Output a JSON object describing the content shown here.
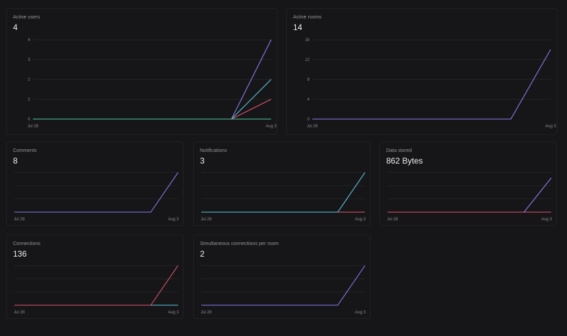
{
  "colors": {
    "purple": "#8b7cf0",
    "cyan": "#5ec8e5",
    "red": "#e5546e",
    "green": "#4fc9a1",
    "grid": "#2a2a2e",
    "axis_text": "#8a8a90"
  },
  "cards": [
    {
      "id": "active-users",
      "title": "Active users",
      "value": "4",
      "chart_data": {
        "type": "line",
        "x_labels": [
          "Jul 28",
          "Aug 3"
        ],
        "y_ticks": [
          0,
          1,
          2,
          3,
          4
        ],
        "ylim": [
          0,
          4
        ],
        "show_y_ticks": true,
        "series": [
          {
            "color": "purple",
            "values": [
              0,
              0,
              0,
              0,
              0,
              0,
              4
            ]
          },
          {
            "color": "cyan",
            "values": [
              0,
              0,
              0,
              0,
              0,
              0,
              2
            ]
          },
          {
            "color": "red",
            "values": [
              0,
              0,
              0,
              0,
              0,
              0,
              1
            ]
          },
          {
            "color": "green",
            "values": [
              0,
              0,
              0,
              0,
              0,
              0,
              0
            ]
          }
        ]
      }
    },
    {
      "id": "active-rooms",
      "title": "Active rooms",
      "value": "14",
      "chart_data": {
        "type": "line",
        "x_labels": [
          "Jul 28",
          "Aug 3"
        ],
        "y_ticks": [
          0,
          4,
          8,
          12,
          16
        ],
        "ylim": [
          0,
          16
        ],
        "show_y_ticks": true,
        "series": [
          {
            "color": "purple",
            "values": [
              0,
              0,
              0,
              0,
              0,
              0,
              14
            ]
          }
        ]
      }
    },
    {
      "id": "comments",
      "title": "Comments",
      "value": "8",
      "chart_data": {
        "type": "line",
        "x_labels": [
          "Jul 28",
          "Aug 3"
        ],
        "ylim": [
          0,
          8
        ],
        "grid_lines": 3,
        "show_y_ticks": false,
        "series": [
          {
            "color": "purple",
            "values": [
              0,
              0,
              0,
              0,
              0,
              0,
              8
            ]
          }
        ]
      }
    },
    {
      "id": "notifications",
      "title": "Notifications",
      "value": "3",
      "chart_data": {
        "type": "line",
        "x_labels": [
          "Jul 28",
          "Aug 3"
        ],
        "ylim": [
          0,
          3
        ],
        "grid_lines": 3,
        "show_y_ticks": false,
        "series": [
          {
            "color": "red",
            "values": [
              0,
              0,
              0,
              0,
              0,
              0,
              0
            ]
          },
          {
            "color": "cyan",
            "values": [
              0,
              0,
              0,
              0,
              0,
              0,
              3
            ]
          }
        ]
      }
    },
    {
      "id": "data-stored",
      "title": "Data stored",
      "value": "862 Bytes",
      "chart_data": {
        "type": "line",
        "x_labels": [
          "Jul 28",
          "Aug 3"
        ],
        "ylim": [
          0,
          1000
        ],
        "grid_lines": 3,
        "show_y_ticks": false,
        "series": [
          {
            "color": "purple",
            "values": [
              0,
              0,
              0,
              0,
              0,
              0,
              862
            ]
          },
          {
            "color": "red",
            "values": [
              0,
              0,
              0,
              0,
              0,
              0,
              0
            ]
          }
        ]
      }
    },
    {
      "id": "connections",
      "title": "Connections",
      "value": "136",
      "chart_data": {
        "type": "line",
        "x_labels": [
          "Jul 28",
          "Aug 3"
        ],
        "ylim": [
          0,
          136
        ],
        "grid_lines": 3,
        "show_y_ticks": false,
        "series": [
          {
            "color": "cyan",
            "values": [
              0,
              0,
              0,
              0,
              0,
              0,
              0
            ]
          },
          {
            "color": "red",
            "values": [
              0,
              0,
              0,
              0,
              0,
              0,
              136
            ]
          }
        ]
      }
    },
    {
      "id": "simultaneous-connections",
      "title": "Simultaneous connections per room",
      "value": "2",
      "chart_data": {
        "type": "line",
        "x_labels": [
          "Jul 28",
          "Aug 3"
        ],
        "ylim": [
          0,
          2
        ],
        "grid_lines": 3,
        "show_y_ticks": false,
        "series": [
          {
            "color": "purple",
            "values": [
              0,
              0,
              0,
              0,
              0,
              0,
              2
            ]
          }
        ]
      }
    }
  ]
}
